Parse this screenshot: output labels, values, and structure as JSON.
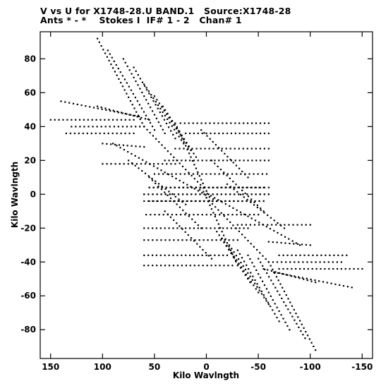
{
  "header": {
    "line1": "V vs U for X1748-28.U BAND.1   Source:X1748-28",
    "line2": "Ants * - *    Stokes I  IF# 1 - 2   Chan# 1"
  },
  "chart_data": {
    "type": "scatter",
    "xlabel": "Kilo Wavlngth",
    "ylabel": "Kilo Wavlngth",
    "xlim": [
      160,
      -160
    ],
    "ylim": [
      -97,
      96
    ],
    "x_reversed": true,
    "x_ticks": [
      150,
      100,
      50,
      0,
      -50,
      -100,
      -150
    ],
    "y_ticks": [
      80,
      60,
      40,
      20,
      0,
      -20,
      -40,
      -60,
      -80
    ],
    "tracks": [
      {
        "x": [
          105,
          60
        ],
        "y": [
          92,
          40
        ]
      },
      {
        "x": [
          95,
          50
        ],
        "y": [
          85,
          38
        ]
      },
      {
        "x": [
          80,
          40
        ],
        "y": [
          80,
          36
        ]
      },
      {
        "x": [
          70,
          30
        ],
        "y": [
          75,
          33
        ]
      },
      {
        "x": [
          60,
          22
        ],
        "y": [
          65,
          30
        ]
      },
      {
        "x": [
          50,
          15
        ],
        "y": [
          58,
          26
        ]
      },
      {
        "x": [
          42,
          10
        ],
        "y": [
          52,
          22
        ]
      },
      {
        "x": [
          60,
          0
        ],
        "y": [
          40,
          2
        ]
      },
      {
        "x": [
          30,
          0
        ],
        "y": [
          42,
          2
        ]
      },
      {
        "x": [
          -105,
          -60
        ],
        "y": [
          -92,
          -40
        ]
      },
      {
        "x": [
          -95,
          -50
        ],
        "y": [
          -85,
          -38
        ]
      },
      {
        "x": [
          -80,
          -40
        ],
        "y": [
          -80,
          -36
        ]
      },
      {
        "x": [
          -70,
          -30
        ],
        "y": [
          -75,
          -33
        ]
      },
      {
        "x": [
          -60,
          -22
        ],
        "y": [
          -65,
          -30
        ]
      },
      {
        "x": [
          -50,
          -15
        ],
        "y": [
          -58,
          -26
        ]
      },
      {
        "x": [
          -42,
          -10
        ],
        "y": [
          -52,
          -22
        ]
      },
      {
        "x": [
          -60,
          0
        ],
        "y": [
          -40,
          -2
        ]
      },
      {
        "x": [
          -30,
          0
        ],
        "y": [
          -42,
          -2
        ]
      },
      {
        "x": [
          150,
          70
        ],
        "y": [
          44,
          44
        ]
      },
      {
        "x": [
          140,
          65
        ],
        "y": [
          55,
          46
        ]
      },
      {
        "x": [
          130,
          60
        ],
        "y": [
          40,
          40
        ]
      },
      {
        "x": [
          105,
          55
        ],
        "y": [
          52,
          44
        ]
      },
      {
        "x": [
          135,
          70
        ],
        "y": [
          36,
          36
        ]
      },
      {
        "x": [
          100,
          60
        ],
        "y": [
          30,
          28
        ]
      },
      {
        "x": [
          100,
          30
        ],
        "y": [
          18,
          18
        ]
      },
      {
        "x": [
          25,
          -60
        ],
        "y": [
          42,
          42
        ]
      },
      {
        "x": [
          20,
          -60
        ],
        "y": [
          36,
          36
        ]
      },
      {
        "x": [
          30,
          -60
        ],
        "y": [
          27,
          27
        ]
      },
      {
        "x": [
          40,
          -60
        ],
        "y": [
          20,
          20
        ]
      },
      {
        "x": [
          50,
          -58
        ],
        "y": [
          12,
          12
        ]
      },
      {
        "x": [
          55,
          -60
        ],
        "y": [
          4,
          4
        ]
      },
      {
        "x": [
          60,
          -60
        ],
        "y": [
          0,
          0
        ]
      },
      {
        "x": [
          55,
          -55
        ],
        "y": [
          -4,
          -4
        ]
      },
      {
        "x": [
          -150,
          -70
        ],
        "y": [
          -44,
          -44
        ]
      },
      {
        "x": [
          -140,
          -65
        ],
        "y": [
          -55,
          -46
        ]
      },
      {
        "x": [
          -130,
          -60
        ],
        "y": [
          -40,
          -40
        ]
      },
      {
        "x": [
          -105,
          -55
        ],
        "y": [
          -52,
          -44
        ]
      },
      {
        "x": [
          -135,
          -70
        ],
        "y": [
          -36,
          -36
        ]
      },
      {
        "x": [
          -100,
          -60
        ],
        "y": [
          -30,
          -28
        ]
      },
      {
        "x": [
          -100,
          -30
        ],
        "y": [
          -18,
          -18
        ]
      },
      {
        "x": [
          -25,
          60
        ],
        "y": [
          -42,
          -42
        ]
      },
      {
        "x": [
          -20,
          60
        ],
        "y": [
          -36,
          -36
        ]
      },
      {
        "x": [
          -30,
          60
        ],
        "y": [
          -27,
          -27
        ]
      },
      {
        "x": [
          -40,
          60
        ],
        "y": [
          -20,
          -20
        ]
      },
      {
        "x": [
          -50,
          58
        ],
        "y": [
          -12,
          -12
        ]
      },
      {
        "x": [
          -55,
          60
        ],
        "y": [
          -4,
          -4
        ]
      },
      {
        "x": [
          -60,
          60
        ],
        "y": [
          0,
          0
        ]
      },
      {
        "x": [
          -55,
          55
        ],
        "y": [
          4,
          4
        ]
      },
      {
        "x": [
          90,
          -10
        ],
        "y": [
          30,
          -4
        ]
      },
      {
        "x": [
          -90,
          10
        ],
        "y": [
          -30,
          4
        ]
      },
      {
        "x": [
          75,
          20
        ],
        "y": [
          20,
          -6
        ]
      },
      {
        "x": [
          -75,
          -20
        ],
        "y": [
          -20,
          6
        ]
      },
      {
        "x": [
          55,
          5
        ],
        "y": [
          10,
          -20
        ]
      },
      {
        "x": [
          -55,
          -5
        ],
        "y": [
          -10,
          20
        ]
      },
      {
        "x": [
          40,
          -5
        ],
        "y": [
          -10,
          -38
        ]
      },
      {
        "x": [
          -40,
          5
        ],
        "y": [
          10,
          38
        ]
      }
    ]
  }
}
